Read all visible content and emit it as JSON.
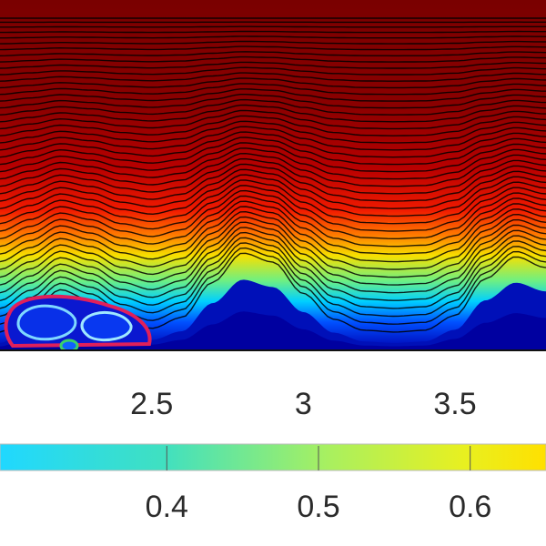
{
  "chart_data": [
    {
      "type": "heatmap",
      "title": "",
      "xlabel": "",
      "ylabel": "",
      "x_ticks": [
        2.5,
        3,
        3.5
      ],
      "x_tick_labels": [
        "2.5",
        "3",
        "3.5"
      ],
      "xlim": [
        2.0,
        3.8
      ],
      "colormap": "jet",
      "contour_lines": true,
      "bed_profile": [
        {
          "x": 2.0,
          "h": 0.05
        },
        {
          "x": 2.1,
          "h": 0.16
        },
        {
          "x": 2.2,
          "h": 0.28
        },
        {
          "x": 2.3,
          "h": 0.22
        },
        {
          "x": 2.4,
          "h": 0.12
        },
        {
          "x": 2.5,
          "h": 0.07
        },
        {
          "x": 2.6,
          "h": 0.13
        },
        {
          "x": 2.7,
          "h": 0.32
        },
        {
          "x": 2.8,
          "h": 0.48
        },
        {
          "x": 2.9,
          "h": 0.43
        },
        {
          "x": 3.0,
          "h": 0.26
        },
        {
          "x": 3.1,
          "h": 0.12
        },
        {
          "x": 3.2,
          "h": 0.06
        },
        {
          "x": 3.3,
          "h": 0.05
        },
        {
          "x": 3.4,
          "h": 0.06
        },
        {
          "x": 3.5,
          "h": 0.14
        },
        {
          "x": 3.6,
          "h": 0.34
        },
        {
          "x": 3.7,
          "h": 0.46
        },
        {
          "x": 3.8,
          "h": 0.4
        }
      ],
      "vortices": [
        {
          "x": 2.15,
          "label": "recirculation-left"
        },
        {
          "x": 2.38,
          "label": "recirculation-right"
        },
        {
          "x": 2.28,
          "label": "recirculation-small"
        }
      ]
    },
    {
      "type": "colorbar",
      "ticks": [
        0.4,
        0.5,
        0.6
      ],
      "tick_labels": [
        "0.4",
        "0.5",
        "0.6"
      ],
      "range_visible": [
        0.29,
        0.65
      ],
      "colormap": "jet"
    }
  ],
  "colors": {
    "background": "#ffffff",
    "contour_line": "#000000",
    "axis_line": "#111111",
    "separatrix": "#e0205a",
    "inner_loop": "#9fe8ff",
    "small_loop": "#3ad06a"
  }
}
